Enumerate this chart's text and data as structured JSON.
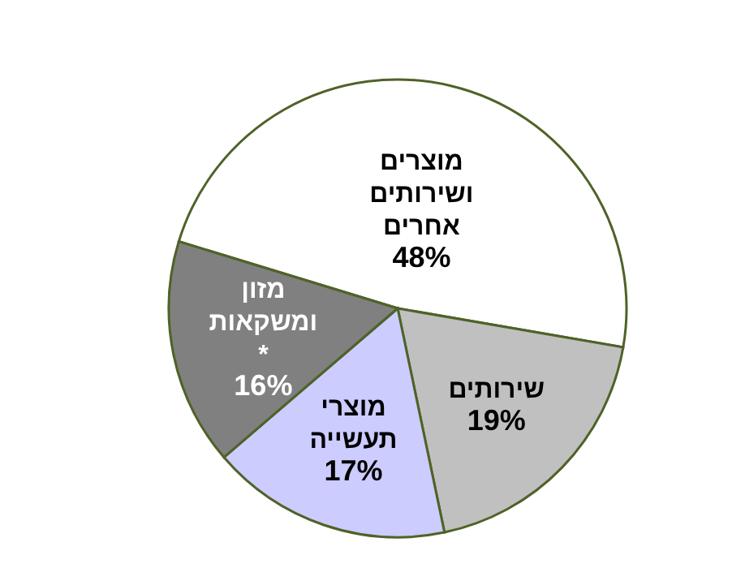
{
  "chart_data": {
    "type": "pie",
    "categories": [
      "מוצרים\nושירותים\nאחרים",
      "שירותים",
      "מוצרי\nתעשייה",
      "מזון\nומשקאות\n*"
    ],
    "values": [
      48,
      19,
      17,
      16
    ],
    "colors": [
      "#ffffff",
      "#c0c0c0",
      "#ccccff",
      "#808080"
    ],
    "value_labels": [
      "48%",
      "19%",
      "17%",
      "16%"
    ]
  }
}
